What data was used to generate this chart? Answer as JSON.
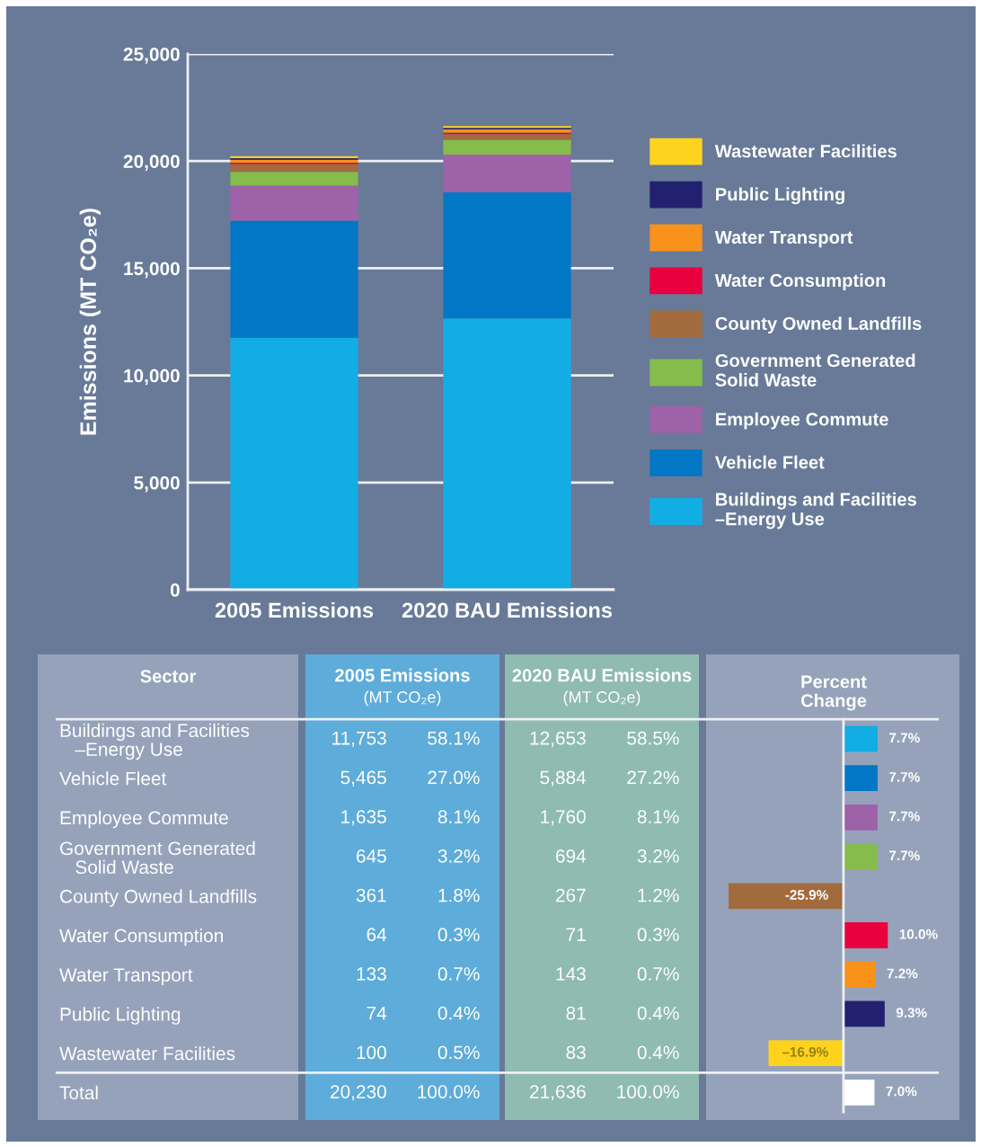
{
  "chart_data": [
    {
      "type": "bar",
      "stacked": true,
      "categories": [
        "2005 Emissions",
        "2020 BAU Emissions"
      ],
      "series": [
        {
          "name": "Buildings and Facilities\n–Energy Use",
          "color": "#13ade6",
          "values": [
            11753,
            12653
          ]
        },
        {
          "name": "Vehicle Fleet",
          "color": "#0277c6",
          "values": [
            5465,
            5884
          ]
        },
        {
          "name": "Employee Commute",
          "color": "#9e62a9",
          "values": [
            1635,
            1760
          ]
        },
        {
          "name": "Government Generated\nSolid Waste",
          "color": "#86bc4c",
          "values": [
            645,
            694
          ]
        },
        {
          "name": "County Owned Landfills",
          "color": "#a26b3e",
          "values": [
            361,
            267
          ]
        },
        {
          "name": "Water Consumption",
          "color": "#e9003f",
          "values": [
            64,
            71
          ]
        },
        {
          "name": "Water Transport",
          "color": "#f8921b",
          "values": [
            133,
            143
          ]
        },
        {
          "name": "Public Lighting",
          "color": "#23216f",
          "values": [
            74,
            81
          ]
        },
        {
          "name": "Wastewater Facilities",
          "color": "#fdd31d",
          "values": [
            100,
            83
          ]
        }
      ],
      "ylabel": "Emissions (MT CO₂e)",
      "ylim": [
        0,
        25000
      ],
      "yticks": [
        0,
        {
          "value": 5000,
          "label": "5,000"
        },
        {
          "value": 10000,
          "label": "10,000"
        },
        {
          "value": 15000,
          "label": "15,000"
        },
        {
          "value": 20000,
          "label": "20,000"
        },
        {
          "value": 25000,
          "label": "25,000"
        }
      ],
      "grid": "y",
      "legend": "right"
    },
    {
      "type": "other",
      "categories": [
        "2005 Emissions\n(MT CO₂e)",
        "2020 BAU Emissions\n(MT CO₂e)"
      ],
      "cell_labels": [
        [
          "11,753",
          "58.1%",
          "12,653",
          "58.5%"
        ],
        [
          "5,465",
          "27.0%",
          "5,884",
          "27.2%"
        ],
        [
          "1,635",
          "8.1%",
          "1,760",
          "8.1%"
        ],
        [
          "645",
          "3.2%",
          "694",
          "3.2%"
        ],
        [
          "361",
          "1.8%",
          "267",
          "1.2%"
        ],
        [
          "64",
          "0.3%",
          "71",
          "0.3%"
        ],
        [
          "133",
          "0.7%",
          "143",
          "0.7%"
        ],
        [
          "74",
          "0.4%",
          "81",
          "0.4%"
        ],
        [
          "100",
          "0.5%",
          "83",
          "0.4%"
        ],
        [
          "20,230",
          "100.0%",
          "21,636",
          "100.0%"
        ]
      ]
    },
    {
      "type": "bar",
      "orientation": "horizontal",
      "title": "Percent\nChange",
      "ylabel": "Sector",
      "categories": [
        "Buildings and Facilities\n–Energy Use",
        "Vehicle Fleet",
        "Employee Commute",
        "Government Generated\nSolid Waste",
        "County Owned Landfills",
        "Water Consumption",
        "Water Transport",
        "Public Lighting",
        "Wastewater Facilities",
        "Total"
      ],
      "values": [
        7.7,
        7.7,
        7.7,
        7.7,
        -25.9,
        10.0,
        7.2,
        9.3,
        -16.9,
        7.0
      ],
      "colors": [
        "#13ade6",
        "#0277c6",
        "#9e62a9",
        "#86bc4c",
        "#a26b3e",
        "#e9003f",
        "#f8921b",
        "#23216f",
        "#fdd31d",
        "#ffffff"
      ],
      "value_labels": [
        "7.7%",
        "7.7%",
        "7.7%",
        "7.7%",
        "-25.9%",
        "10.0%",
        "7.2%",
        "9.3%",
        "–16.9%",
        "7.0%"
      ]
    }
  ]
}
